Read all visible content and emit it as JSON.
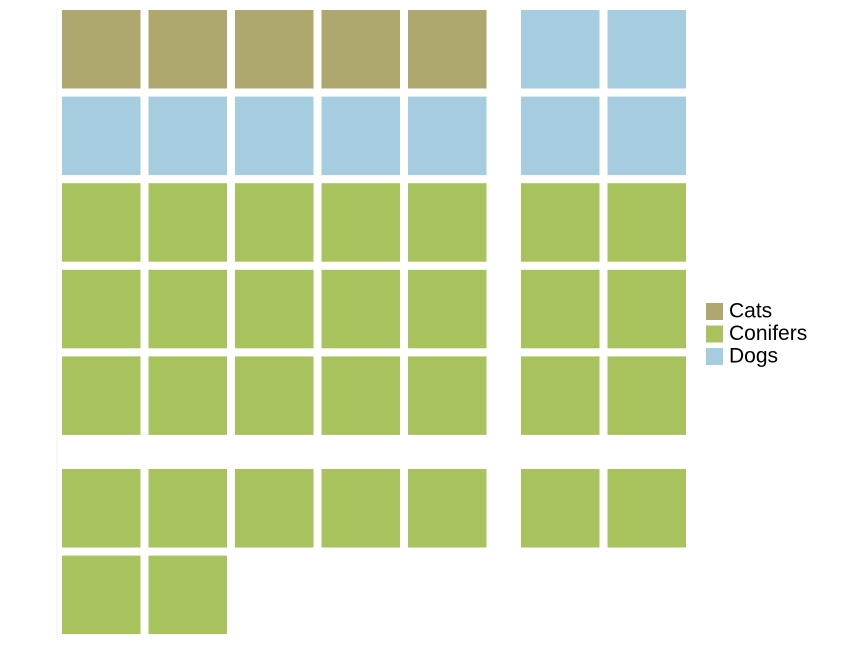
{
  "chart_data": {
    "type": "waffle",
    "series": [
      {
        "name": "Cats",
        "color": "#aea76e",
        "values": [
          5
        ]
      },
      {
        "name": "Conifers",
        "color": "#a8c25e",
        "values": [
          30
        ]
      },
      {
        "name": "Dogs",
        "color": "#a5cddf",
        "values": [
          9
        ]
      }
    ],
    "fill_order": [
      0,
      2,
      1
    ],
    "columns": 7
  }
}
